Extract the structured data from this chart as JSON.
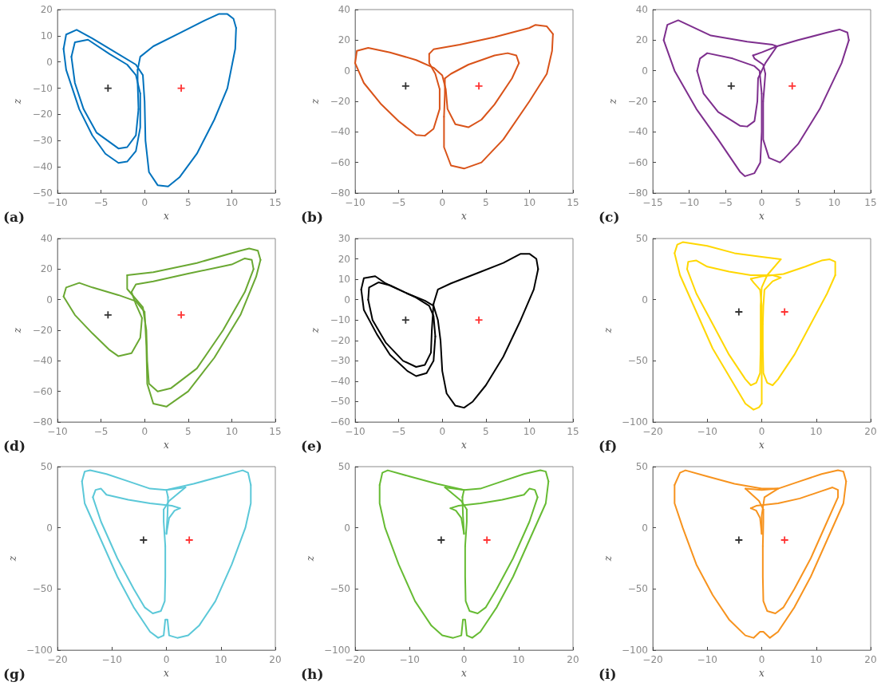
{
  "chart_data": [
    {
      "type": "line",
      "xlabel": "x",
      "ylabel": "z",
      "annotations": [
        "(a)"
      ],
      "xlim": [
        -10,
        15
      ],
      "ylim": [
        -50,
        20
      ],
      "xticks": [
        -10,
        -5,
        0,
        5,
        10,
        15
      ],
      "yticks": [
        -50,
        -40,
        -30,
        -20,
        -10,
        0,
        10,
        20
      ],
      "series": [
        {
          "type": "line",
          "color": "#0072bd",
          "x": [
            -0.8,
            -0.5,
            1,
            4,
            7,
            8.5,
            9.5,
            10.2,
            10.5,
            10.4,
            9.5,
            8,
            6,
            4,
            2.7,
            1.5,
            0.5,
            0.1,
            0,
            -0.2,
            -1,
            -3,
            -6,
            -7.8,
            -9,
            -9.3,
            -9,
            -7.5,
            -6,
            -4.5,
            -3,
            -2,
            -1,
            -0.5,
            -0.5,
            -1,
            -2,
            -4,
            -6.5,
            -8,
            -8.4,
            -8,
            -7,
            -5.5,
            -3,
            -2,
            -1,
            -0.7,
            -0.8,
            -0.8
          ],
          "values": [
            -3,
            2,
            6,
            11,
            16,
            18.3,
            18.3,
            16.5,
            13,
            5,
            -10,
            -22,
            -35,
            -44,
            -47.5,
            -47,
            -42,
            -30,
            -15,
            -5,
            -1,
            3,
            9,
            12.3,
            10.5,
            5,
            -3,
            -18,
            -28,
            -35,
            -38.5,
            -38,
            -34,
            -25,
            -12,
            -5,
            -1,
            3,
            8.5,
            7.5,
            2,
            -8,
            -18,
            -27,
            -33,
            -32.5,
            -28,
            -18,
            -8,
            -3
          ]
        },
        {
          "type": "scatter",
          "marker": "cross",
          "color": "#000000",
          "x": [
            -4.2
          ],
          "values": [
            -10
          ]
        },
        {
          "type": "scatter",
          "marker": "cross",
          "color": "#ff0000",
          "x": [
            4.2
          ],
          "values": [
            -10
          ]
        }
      ]
    },
    {
      "type": "line",
      "xlabel": "x",
      "ylabel": "z",
      "annotations": [
        "(b)"
      ],
      "xlim": [
        -10,
        15
      ],
      "ylim": [
        -80,
        40
      ],
      "xticks": [
        -10,
        -5,
        0,
        5,
        10,
        15
      ],
      "yticks": [
        -80,
        -60,
        -40,
        -20,
        0,
        20,
        40
      ],
      "series": [
        {
          "type": "line",
          "color": "#d95319",
          "x": [
            0.3,
            1,
            3,
            6,
            7.5,
            8.5,
            8.8,
            8,
            6,
            4.5,
            3,
            1.5,
            0.6,
            0.4,
            0,
            -1,
            -3,
            -6,
            -8.5,
            -9.8,
            -10,
            -9,
            -7,
            -5,
            -3,
            -2,
            -1,
            -0.3,
            -0.3,
            -0.8,
            -1.5,
            -1.5,
            -1,
            2,
            6,
            10,
            10.7,
            12,
            12.7,
            12.6,
            12,
            10,
            7,
            4.5,
            2.5,
            1,
            0.2,
            0.2,
            0.3,
            0.3
          ],
          "values": [
            -5,
            -2,
            4,
            10,
            11.5,
            10,
            5,
            -5,
            -22,
            -32,
            -37,
            -35,
            -25,
            -12,
            -3,
            2,
            7,
            12,
            15,
            13,
            5,
            -8,
            -22,
            -33,
            -42,
            -42.5,
            -38,
            -25,
            -12,
            -2,
            5,
            11,
            14,
            17,
            22,
            28,
            30,
            29,
            24,
            13,
            -2,
            -20,
            -45,
            -60,
            -64,
            -62,
            -50,
            -30,
            -15,
            -5
          ]
        },
        {
          "type": "scatter",
          "marker": "cross",
          "color": "#000000",
          "x": [
            -4.2
          ],
          "values": [
            -10
          ]
        },
        {
          "type": "scatter",
          "marker": "cross",
          "color": "#ff0000",
          "x": [
            4.2
          ],
          "values": [
            -10
          ]
        }
      ]
    },
    {
      "type": "line",
      "xlabel": "x",
      "ylabel": "z",
      "annotations": [
        "(c)"
      ],
      "xlim": [
        -15,
        15
      ],
      "ylim": [
        -80,
        40
      ],
      "xticks": [
        -15,
        -10,
        -5,
        0,
        5,
        10,
        15
      ],
      "yticks": [
        -80,
        -60,
        -40,
        -20,
        0,
        20,
        40
      ],
      "series": [
        {
          "type": "line",
          "color": "#7e2f8e",
          "x": [
            2.1,
            5,
            9,
            10.7,
            11.8,
            12,
            11,
            8,
            5,
            3,
            2.5,
            1,
            0.2,
            0.2,
            0.5,
            0.2,
            -1,
            -1.2,
            0,
            2.1,
            1.5,
            -2,
            -7,
            -11.5,
            -13,
            -13.5,
            -12,
            -9,
            -6,
            -3,
            -2.3,
            -1,
            -0.2,
            0,
            0,
            -0.3,
            -1,
            -4,
            -7.5,
            -8.5,
            -8.9,
            -8,
            -6,
            -3,
            -2,
            -1,
            -0.6,
            -0.5,
            0.5,
            2.1
          ],
          "values": [
            16,
            20,
            25,
            27,
            25,
            20,
            5,
            -25,
            -48,
            -58,
            -60,
            -57,
            -45,
            -20,
            -2,
            4,
            8,
            10,
            12,
            16,
            17,
            19,
            23,
            33,
            30,
            20,
            0,
            -25,
            -45,
            -66,
            -69,
            -67,
            -60,
            -40,
            -15,
            0,
            3,
            8,
            11.5,
            8,
            0,
            -15,
            -27,
            -36,
            -36.5,
            -33,
            -20,
            -5,
            5,
            16
          ]
        },
        {
          "type": "scatter",
          "marker": "cross",
          "color": "#000000",
          "x": [
            -4.2
          ],
          "values": [
            -10
          ]
        },
        {
          "type": "scatter",
          "marker": "cross",
          "color": "#ff0000",
          "x": [
            4.2
          ],
          "values": [
            -10
          ]
        }
      ]
    },
    {
      "type": "line",
      "xlabel": "x",
      "ylabel": "z",
      "annotations": [
        "(d)"
      ],
      "xlim": [
        -10,
        15
      ],
      "ylim": [
        -80,
        40
      ],
      "xticks": [
        -10,
        -5,
        0,
        5,
        10,
        15
      ],
      "yticks": [
        -80,
        -60,
        -40,
        -20,
        0,
        20,
        40
      ],
      "series": [
        {
          "type": "line",
          "color": "#6aa832",
          "x": [
            0,
            -1,
            -3,
            -6,
            -7.5,
            -9,
            -9.3,
            -8,
            -6,
            -4,
            -3,
            -1.5,
            -0.5,
            -0.3,
            -1,
            -1.5,
            -1,
            1,
            5,
            10,
            11.5,
            12.3,
            12.5,
            11.5,
            9,
            6,
            3,
            1.5,
            0.5,
            0.3,
            0.2,
            -0.2,
            -2,
            -2,
            1,
            6,
            11,
            12,
            13,
            13.3,
            12.8,
            11,
            8,
            5,
            2.5,
            1,
            0.3,
            0.2,
            0
          ],
          "values": [
            -8,
            -1,
            3,
            8,
            11,
            8,
            2,
            -10,
            -22,
            -33,
            -37,
            -35,
            -25,
            -12,
            -3,
            5,
            10,
            12,
            17,
            23,
            27,
            26,
            20,
            5,
            -20,
            -45,
            -58,
            -60,
            -55,
            -40,
            -20,
            -5,
            7,
            16,
            18,
            24,
            32,
            33.5,
            32,
            26,
            15,
            -10,
            -38,
            -60,
            -70,
            -68,
            -55,
            -30,
            -8
          ]
        },
        {
          "type": "scatter",
          "marker": "cross",
          "color": "#000000",
          "x": [
            -4.2
          ],
          "values": [
            -10
          ]
        },
        {
          "type": "scatter",
          "marker": "cross",
          "color": "#ff0000",
          "x": [
            4.2
          ],
          "values": [
            -10
          ]
        }
      ]
    },
    {
      "type": "line",
      "xlabel": "x",
      "ylabel": "z",
      "annotations": [
        "(e)"
      ],
      "xlim": [
        -10,
        15
      ],
      "ylim": [
        -60,
        30
      ],
      "xticks": [
        -10,
        -5,
        0,
        5,
        10,
        15
      ],
      "yticks": [
        -60,
        -50,
        -40,
        -30,
        -20,
        -10,
        0,
        10,
        20,
        30
      ],
      "series": [
        {
          "type": "line",
          "color": "#000000",
          "x": [
            -1,
            -0.5,
            1,
            4,
            7,
            9,
            10,
            10.8,
            11,
            10.5,
            9,
            7,
            5,
            3.5,
            2.5,
            1.5,
            0.5,
            0,
            -0.2,
            -0.5,
            -1,
            -2,
            -4,
            -6.5,
            -7.7,
            -9,
            -9.3,
            -9,
            -7.5,
            -6,
            -4,
            -3,
            -1.8,
            -1,
            -0.8,
            -1,
            -1.5,
            -3,
            -6,
            -7.3,
            -8.4,
            -8.5,
            -8,
            -6.5,
            -4.5,
            -3,
            -2,
            -1.3,
            -1.2,
            -1
          ],
          "values": [
            -2,
            5,
            8,
            13,
            18,
            22.5,
            22.5,
            20,
            15,
            5,
            -10,
            -28,
            -42,
            -50,
            -53,
            -52,
            -46,
            -35,
            -20,
            -10,
            -3,
            -0.5,
            3,
            8,
            11.5,
            10.5,
            5,
            -5,
            -17,
            -27,
            -35,
            -37.5,
            -36,
            -30,
            -18,
            -8,
            -3,
            1,
            7,
            8.5,
            6,
            0,
            -10,
            -21,
            -30,
            -33,
            -32,
            -26,
            -15,
            -2
          ]
        },
        {
          "type": "scatter",
          "marker": "cross",
          "color": "#000000",
          "x": [
            -4.2
          ],
          "values": [
            -10
          ]
        },
        {
          "type": "scatter",
          "marker": "cross",
          "color": "#ff0000",
          "x": [
            4.2
          ],
          "values": [
            -10
          ]
        }
      ]
    },
    {
      "type": "line",
      "xlabel": "x",
      "ylabel": "z",
      "annotations": [
        "(f)"
      ],
      "xlim": [
        -20,
        20
      ],
      "ylim": [
        -100,
        50
      ],
      "xticks": [
        -20,
        -10,
        0,
        10,
        20
      ],
      "yticks": [
        -100,
        -50,
        0,
        50
      ],
      "series": [
        {
          "type": "line",
          "color": "#ffd700",
          "x": [
            0,
            0,
            0,
            0,
            -0.3,
            -1.5,
            -2,
            0,
            4,
            8,
            11,
            12.5,
            13.5,
            13.5,
            12,
            9,
            6,
            3,
            2,
            1,
            0.3,
            0.2,
            0.2,
            0.3,
            0.5,
            2,
            3.5,
            2,
            -2,
            -6,
            -10,
            -12,
            -13.5,
            -13.7,
            -12,
            -9,
            -6,
            -3,
            -2,
            -1,
            -0.3,
            -0.2,
            -0.2,
            -0.2,
            0,
            1,
            3.5,
            0,
            -5,
            -10,
            -14.5,
            -15.5,
            -16,
            -15,
            -12,
            -9,
            -5,
            -3,
            -1.5,
            -0.5,
            0
          ],
          "values": [
            -85,
            -60,
            -30,
            -5,
            8,
            14,
            17,
            19,
            21,
            27,
            32,
            33,
            31,
            20,
            5,
            -20,
            -45,
            -65,
            -70,
            -68,
            -60,
            -40,
            -20,
            -5,
            8,
            15,
            18,
            20,
            20,
            23,
            27,
            32,
            31,
            25,
            5,
            -20,
            -45,
            -65,
            -70,
            -68,
            -60,
            -40,
            -20,
            -5,
            10,
            20,
            33,
            35,
            38,
            44,
            47,
            45,
            38,
            20,
            -10,
            -40,
            -70,
            -85,
            -90,
            -88,
            -85
          ]
        },
        {
          "type": "scatter",
          "marker": "cross",
          "color": "#000000",
          "x": [
            -4.2
          ],
          "values": [
            -10
          ]
        },
        {
          "type": "scatter",
          "marker": "cross",
          "color": "#ff0000",
          "x": [
            4.2
          ],
          "values": [
            -10
          ]
        }
      ]
    },
    {
      "type": "line",
      "xlabel": "x",
      "ylabel": "z",
      "annotations": [
        "(g)"
      ],
      "xlim": [
        -20,
        20
      ],
      "ylim": [
        -100,
        50
      ],
      "xticks": [
        -20,
        -10,
        0,
        10,
        20
      ],
      "yticks": [
        -100,
        -50,
        0,
        50
      ],
      "series": [
        {
          "type": "line",
          "color": "#5bc8d8",
          "x": [
            0,
            0.5,
            1.5,
            2.5,
            1,
            -3,
            -7,
            -11,
            -12,
            -13,
            -13.5,
            -12,
            -9,
            -6,
            -4,
            -2.5,
            -1,
            -0.3,
            -0.2,
            -0.2,
            -0.5,
            -0.5,
            0.5,
            3.5,
            0,
            -3,
            -7,
            -11,
            -14,
            -15,
            -15.5,
            -15,
            -12,
            -9,
            -6,
            -3,
            -1.5,
            -0.5,
            -0.2,
            0.2,
            0.5,
            2,
            4,
            6,
            9,
            12,
            14.5,
            15.5,
            15.5,
            15,
            14,
            10,
            5,
            0,
            0.3,
            0.2,
            0
          ],
          "values": [
            -5,
            8,
            14,
            16,
            18,
            20,
            23,
            27,
            32,
            31,
            25,
            5,
            -25,
            -50,
            -65,
            -70,
            -68,
            -60,
            -40,
            -15,
            5,
            15,
            22,
            33,
            31,
            32,
            38,
            44,
            47,
            46,
            38,
            20,
            -10,
            -40,
            -65,
            -85,
            -90,
            -88,
            -75,
            -75,
            -88,
            -90,
            -88,
            -80,
            -60,
            -30,
            0,
            20,
            35,
            45,
            47,
            42,
            36,
            31,
            25,
            10,
            -5
          ]
        },
        {
          "type": "scatter",
          "marker": "cross",
          "color": "#000000",
          "x": [
            -4.2
          ],
          "values": [
            -10
          ]
        },
        {
          "type": "scatter",
          "marker": "cross",
          "color": "#ff0000",
          "x": [
            4.2
          ],
          "values": [
            -10
          ]
        }
      ]
    },
    {
      "type": "line",
      "xlabel": "x",
      "ylabel": "z",
      "annotations": [
        "(h)"
      ],
      "xlim": [
        -20,
        20
      ],
      "ylim": [
        -100,
        50
      ],
      "xticks": [
        -20,
        -10,
        0,
        10,
        20
      ],
      "yticks": [
        -100,
        -50,
        0,
        50
      ],
      "series": [
        {
          "type": "line",
          "color": "#66bb33",
          "x": [
            0,
            -0.5,
            -1.5,
            -2.5,
            -1,
            3,
            7,
            11,
            12,
            13,
            13.5,
            12,
            9,
            6,
            4,
            2.5,
            1,
            0.3,
            0.2,
            0.2,
            0.5,
            0.5,
            -0.5,
            -3.5,
            0,
            3,
            7,
            11,
            14,
            15,
            15.5,
            15,
            12,
            9,
            6,
            3,
            1.5,
            0.5,
            0.2,
            -0.2,
            -0.5,
            -2,
            -4,
            -6,
            -9,
            -12,
            -14.5,
            -15.5,
            -15.5,
            -15,
            -14,
            -10,
            -5,
            0,
            -0.3,
            -0.2,
            0
          ],
          "values": [
            -5,
            8,
            14,
            16,
            18,
            20,
            23,
            27,
            32,
            31,
            25,
            5,
            -25,
            -50,
            -65,
            -70,
            -68,
            -60,
            -40,
            -15,
            5,
            15,
            22,
            33,
            31,
            32,
            38,
            44,
            47,
            46,
            38,
            20,
            -10,
            -40,
            -65,
            -85,
            -90,
            -88,
            -75,
            -75,
            -88,
            -90,
            -88,
            -80,
            -60,
            -30,
            0,
            20,
            35,
            45,
            47,
            42,
            36,
            31,
            25,
            10,
            -5
          ]
        },
        {
          "type": "scatter",
          "marker": "cross",
          "color": "#000000",
          "x": [
            -4.2
          ],
          "values": [
            -10
          ]
        },
        {
          "type": "scatter",
          "marker": "cross",
          "color": "#ff0000",
          "x": [
            4.2
          ],
          "values": [
            -10
          ]
        }
      ]
    },
    {
      "type": "line",
      "xlabel": "x",
      "ylabel": "z",
      "annotations": [
        "(i)"
      ],
      "xlim": [
        -20,
        20
      ],
      "ylim": [
        -100,
        50
      ],
      "xticks": [
        -20,
        -10,
        0,
        10,
        20
      ],
      "yticks": [
        -100,
        -50,
        0,
        50
      ],
      "series": [
        {
          "type": "line",
          "color": "#f7931e",
          "x": [
            0,
            -0.3,
            -1,
            -2,
            -1,
            3,
            7,
            11,
            13,
            14,
            14,
            12,
            9,
            6,
            4,
            2.5,
            1,
            0.3,
            0.2,
            0.2,
            0.3,
            0.3,
            -0.5,
            -3,
            0,
            3,
            7,
            11,
            14,
            15,
            15.5,
            15,
            12,
            9,
            6,
            3,
            1.5,
            0.3,
            -0.3,
            -1.5,
            -3,
            -6,
            -9,
            -12,
            -14.5,
            -16,
            -16,
            -15,
            -14,
            -10,
            -5,
            0,
            3,
            0.5,
            0,
            0
          ],
          "values": [
            -5,
            8,
            14,
            16,
            18,
            20,
            24,
            30,
            33,
            31,
            25,
            5,
            -25,
            -50,
            -65,
            -70,
            -68,
            -60,
            -40,
            -15,
            5,
            15,
            22,
            32,
            31,
            32,
            38,
            44,
            47,
            46,
            38,
            20,
            -10,
            -40,
            -65,
            -85,
            -90,
            -85,
            -85,
            -90,
            -88,
            -75,
            -55,
            -30,
            0,
            20,
            35,
            45,
            47,
            42,
            36,
            32,
            32,
            25,
            10,
            -5
          ]
        },
        {
          "type": "scatter",
          "marker": "cross",
          "color": "#000000",
          "x": [
            -4.2
          ],
          "values": [
            -10
          ]
        },
        {
          "type": "scatter",
          "marker": "cross",
          "color": "#ff0000",
          "x": [
            4.2
          ],
          "values": [
            -10
          ]
        }
      ]
    }
  ]
}
